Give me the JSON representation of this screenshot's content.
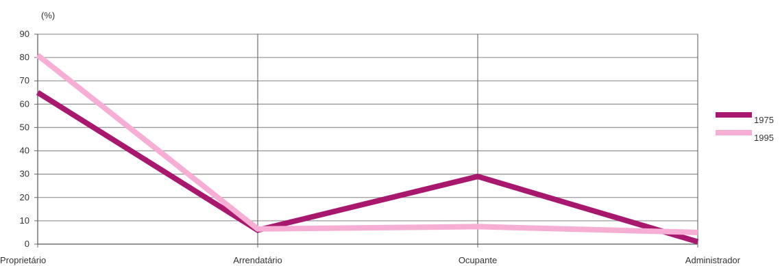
{
  "chart_data": {
    "type": "line",
    "title": "",
    "unit_label": "(%)",
    "xlabel": "",
    "ylabel": "",
    "categories": [
      "Proprietário",
      "Arrendatário",
      "Ocupante",
      "Administrador"
    ],
    "y_tick_labels": [
      "0",
      "10",
      "20",
      "30",
      "40",
      "50",
      "60",
      "70",
      "80",
      "90"
    ],
    "ylim": [
      0,
      90
    ],
    "grid": true,
    "legend_position": "right",
    "series": [
      {
        "name": "1975",
        "values": [
          65,
          6,
          29,
          1
        ],
        "color": "#a8186e"
      },
      {
        "name": "1995",
        "values": [
          81,
          6.5,
          7.5,
          5
        ],
        "color": "#f6aed4"
      }
    ]
  }
}
